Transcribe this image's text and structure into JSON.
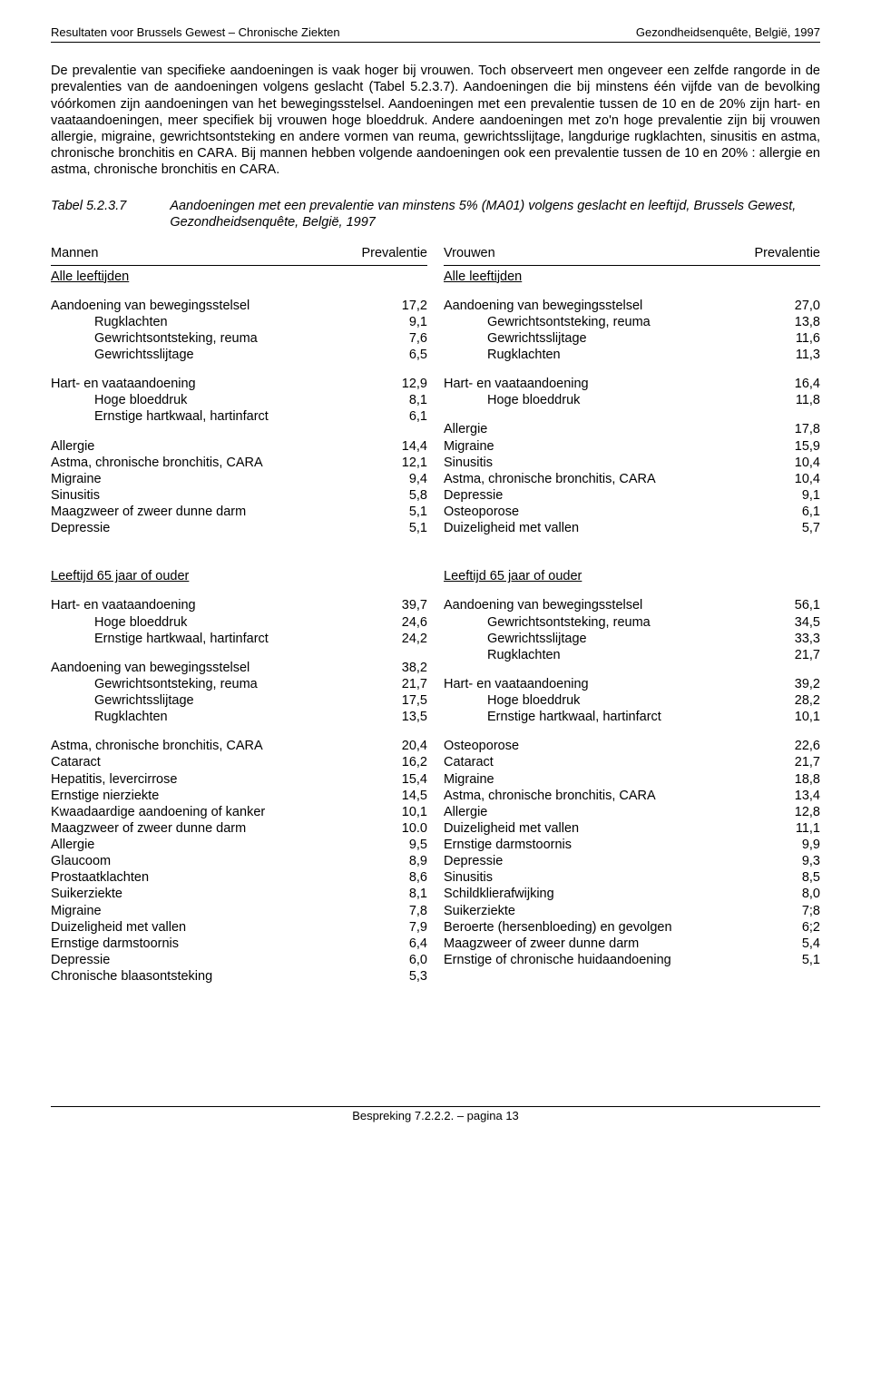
{
  "header": {
    "left": "Resultaten voor Brussels Gewest – Chronische Ziekten",
    "right": "Gezondheidsenquête, België, 1997"
  },
  "paragraph": "De prevalentie van specifieke aandoeningen is vaak hoger bij vrouwen. Toch observeert men ongeveer een zelfde rangorde in de prevalenties van de aandoeningen volgens geslacht (Tabel 5.2.3.7). Aandoeningen die bij minstens één vijfde van de bevolking vóórkomen zijn aandoeningen van het bewegingsstelsel. Aandoeningen met een prevalentie tussen de 10 en de 20% zijn hart- en vaataandoeningen, meer specifiek bij vrouwen hoge bloeddruk. Andere aandoeningen met zo'n hoge prevalentie zijn bij vrouwen allergie, migraine, gewrichtsontsteking en andere vormen van reuma, gewrichtsslijtage, langdurige rugklachten, sinusitis en astma, chronische bronchitis en CARA.  Bij mannen hebben volgende aandoeningen ook een prevalentie tussen de 10 en 20% : allergie en astma, chronische bronchitis en CARA.",
  "tableTitle": {
    "label": "Tabel 5.2.3.7",
    "desc": "Aandoeningen met een prevalentie van minstens 5% (MA01) volgens geslacht en leeftijd, Brussels Gewest, Gezondheidsenquête, België, 1997"
  },
  "colHeaders": {
    "leftName": "Mannen",
    "rightName": "Vrouwen",
    "metric": "Prevalentie"
  },
  "subhdrAll": "Alle leeftijden",
  "subhdrOld": "Leeftijd 65 jaar of ouder",
  "men_all": [
    [
      {
        "l": "Aandoening van bewegingsstelsel",
        "v": "17,2",
        "i": 0
      },
      {
        "l": "Rugklachten",
        "v": "9,1",
        "i": 1
      },
      {
        "l": "Gewrichtsontsteking, reuma",
        "v": "7,6",
        "i": 1
      },
      {
        "l": "Gewrichtsslijtage",
        "v": "6,5",
        "i": 1
      }
    ],
    [
      {
        "l": "Hart- en vaataandoening",
        "v": "12,9",
        "i": 0
      },
      {
        "l": "Hoge bloeddruk",
        "v": "8,1",
        "i": 1
      },
      {
        "l": "Ernstige hartkwaal, hartinfarct",
        "v": "6,1",
        "i": 1
      }
    ],
    [
      {
        "l": "Allergie",
        "v": "14,4",
        "i": 0
      },
      {
        "l": "Astma, chronische bronchitis, CARA",
        "v": "12,1",
        "i": 0
      },
      {
        "l": "Migraine",
        "v": "9,4",
        "i": 0
      },
      {
        "l": "Sinusitis",
        "v": "5,8",
        "i": 0
      },
      {
        "l": "Maagzweer of zweer dunne darm",
        "v": "5,1",
        "i": 0
      },
      {
        "l": "Depressie",
        "v": "5,1",
        "i": 0
      }
    ]
  ],
  "women_all": [
    [
      {
        "l": "Aandoening van bewegingsstelsel",
        "v": "27,0",
        "i": 0
      },
      {
        "l": "Gewrichtsontsteking, reuma",
        "v": "13,8",
        "i": 1
      },
      {
        "l": "Gewrichtsslijtage",
        "v": "11,6",
        "i": 1
      },
      {
        "l": "Rugklachten",
        "v": "11,3",
        "i": 1
      }
    ],
    [
      {
        "l": "Hart- en vaataandoening",
        "v": "16,4",
        "i": 0
      },
      {
        "l": "Hoge bloeddruk",
        "v": "11,8",
        "i": 1
      }
    ],
    [
      {
        "l": "Allergie",
        "v": "17,8",
        "i": 0
      },
      {
        "l": "Migraine",
        "v": "15,9",
        "i": 0
      },
      {
        "l": "Sinusitis",
        "v": "10,4",
        "i": 0
      },
      {
        "l": "Astma, chronische bronchitis, CARA",
        "v": "10,4",
        "i": 0
      },
      {
        "l": "Depressie",
        "v": "9,1",
        "i": 0
      },
      {
        "l": "Osteoporose",
        "v": "6,1",
        "i": 0
      },
      {
        "l": "Duizeligheid met vallen",
        "v": "5,7",
        "i": 0
      }
    ]
  ],
  "men_old": [
    [
      {
        "l": "Hart- en vaataandoening",
        "v": "39,7",
        "i": 0
      },
      {
        "l": "Hoge bloeddruk",
        "v": "24,6",
        "i": 1
      },
      {
        "l": "Ernstige hartkwaal, hartinfarct",
        "v": "24,2",
        "i": 1
      }
    ],
    [
      {
        "l": "Aandoening van bewegingsstelsel",
        "v": "38,2",
        "i": 0
      },
      {
        "l": "Gewrichtsontsteking, reuma",
        "v": "21,7",
        "i": 1
      },
      {
        "l": "Gewrichtsslijtage",
        "v": "17,5",
        "i": 1
      },
      {
        "l": "Rugklachten",
        "v": "13,5",
        "i": 1
      }
    ],
    [
      {
        "l": "Astma, chronische bronchitis, CARA",
        "v": "20,4",
        "i": 0
      },
      {
        "l": "Cataract",
        "v": "16,2",
        "i": 0
      },
      {
        "l": "Hepatitis, levercirrose",
        "v": "15,4",
        "i": 0
      },
      {
        "l": "Ernstige nierziekte",
        "v": "14,5",
        "i": 0
      },
      {
        "l": "Kwaadaardige aandoening of kanker",
        "v": "10,1",
        "i": 0
      },
      {
        "l": "Maagzweer of zweer dunne darm",
        "v": "10.0",
        "i": 0
      },
      {
        "l": "Allergie",
        "v": "9,5",
        "i": 0
      },
      {
        "l": "Glaucoom",
        "v": "8,9",
        "i": 0
      },
      {
        "l": "Prostaatklachten",
        "v": "8,6",
        "i": 0
      },
      {
        "l": "Suikerziekte",
        "v": "8,1",
        "i": 0
      },
      {
        "l": "Migraine",
        "v": "7,8",
        "i": 0
      },
      {
        "l": "Duizeligheid met vallen",
        "v": "7,9",
        "i": 0
      },
      {
        "l": "Ernstige darmstoornis",
        "v": "6,4",
        "i": 0
      },
      {
        "l": "Depressie",
        "v": "6,0",
        "i": 0
      },
      {
        "l": "Chronische blaasontsteking",
        "v": "5,3",
        "i": 0
      }
    ]
  ],
  "women_old": [
    [
      {
        "l": "Aandoening van bewegingsstelsel",
        "v": "56,1",
        "i": 0
      },
      {
        "l": "Gewrichtsontsteking, reuma",
        "v": "34,5",
        "i": 1
      },
      {
        "l": "Gewrichtsslijtage",
        "v": "33,3",
        "i": 1
      },
      {
        "l": "Rugklachten",
        "v": "21,7",
        "i": 1
      }
    ],
    [
      {
        "l": "Hart- en vaataandoening",
        "v": "39,2",
        "i": 0
      },
      {
        "l": "Hoge bloeddruk",
        "v": "28,2",
        "i": 1
      },
      {
        "l": "Ernstige hartkwaal, hartinfarct",
        "v": "10,1",
        "i": 1
      }
    ],
    [
      {
        "l": "Osteoporose",
        "v": "22,6",
        "i": 0
      },
      {
        "l": "Cataract",
        "v": "21,7",
        "i": 0
      },
      {
        "l": "Migraine",
        "v": "18,8",
        "i": 0
      },
      {
        "l": "Astma, chronische bronchitis, CARA",
        "v": "13,4",
        "i": 0
      },
      {
        "l": "Allergie",
        "v": "12,8",
        "i": 0
      },
      {
        "l": "Duizeligheid met vallen",
        "v": "11,1",
        "i": 0
      },
      {
        "l": "Ernstige darmstoornis",
        "v": "9,9",
        "i": 0
      },
      {
        "l": "Depressie",
        "v": "9,3",
        "i": 0
      },
      {
        "l": "Sinusitis",
        "v": "8,5",
        "i": 0
      },
      {
        "l": "Schildklierafwijking",
        "v": "8,0",
        "i": 0
      },
      {
        "l": "Suikerziekte",
        "v": "7;8",
        "i": 0
      },
      {
        "l": "Beroerte (hersenbloeding) en gevolgen",
        "v": "6;2",
        "i": 0
      },
      {
        "l": "Maagzweer of zweer dunne darm",
        "v": "5,4",
        "i": 0
      },
      {
        "l": "Ernstige of chronische huidaandoening",
        "v": "5,1",
        "i": 0
      }
    ]
  ],
  "footer": "Bespreking 7.2.2.2. – pagina 13"
}
